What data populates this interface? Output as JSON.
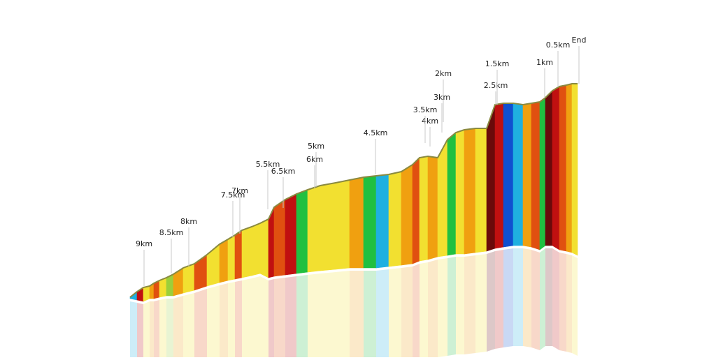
{
  "chart_data": {
    "type": "area",
    "title": "",
    "xlabel": "",
    "ylabel": "",
    "style": "3D perspective elevation profile with colored gradient segments and reflection",
    "markers": [
      {
        "label": "9km"
      },
      {
        "label": "8.5km"
      },
      {
        "label": "8km"
      },
      {
        "label": "7.5km"
      },
      {
        "label": "7km"
      },
      {
        "label": "6.5km"
      },
      {
        "label": "6km"
      },
      {
        "label": "5.5km"
      },
      {
        "label": "5km"
      },
      {
        "label": "4.5km"
      },
      {
        "label": "4km"
      },
      {
        "label": "3.5km"
      },
      {
        "label": "3km"
      },
      {
        "label": "2.5km"
      },
      {
        "label": "2km"
      },
      {
        "label": "1.5km"
      },
      {
        "label": "1km"
      },
      {
        "label": "0.5km"
      },
      {
        "label": "End"
      }
    ],
    "gradient_palette": {
      "flat": "#9ccf3a",
      "gentle": "#f2e030",
      "moderate": "#f0a010",
      "steep": "#e05010",
      "very_steep": "#c01010",
      "extreme": "#6a0a0a",
      "descent": "#1fb0e0",
      "descent_steep": "#1050d0",
      "green": "#20c040"
    }
  }
}
